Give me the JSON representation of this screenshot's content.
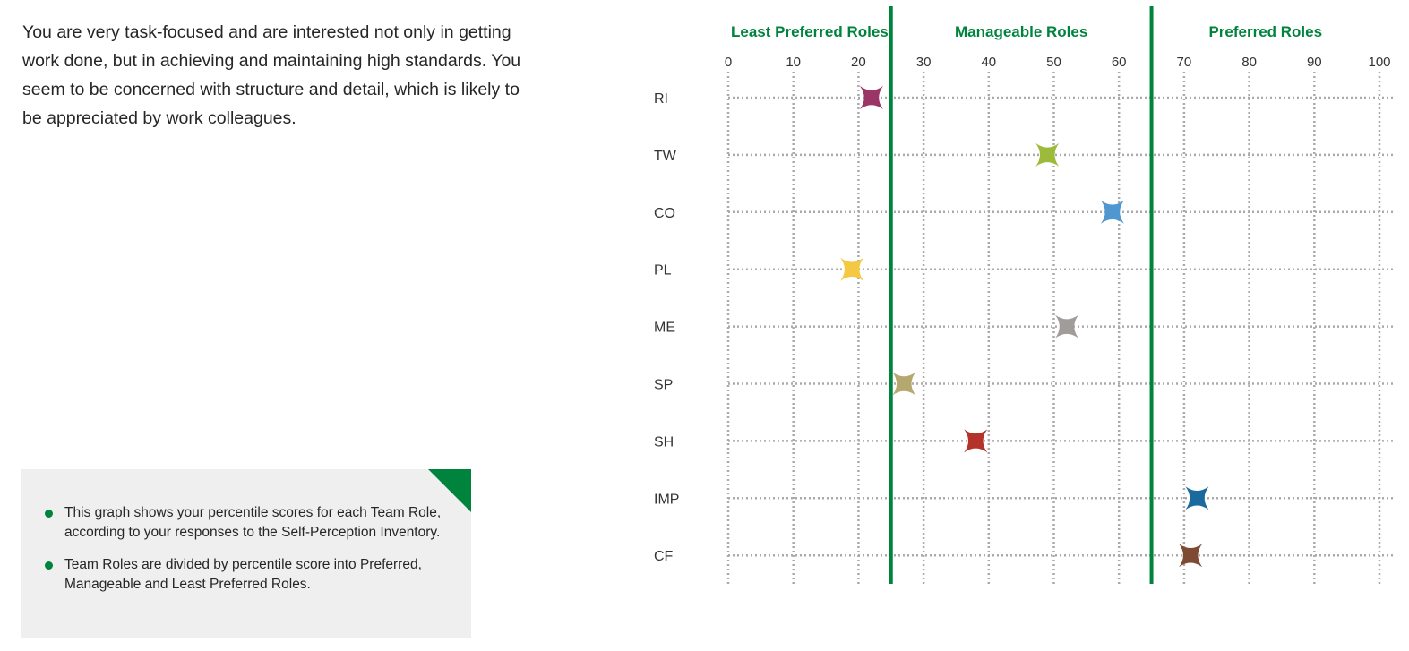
{
  "intro_text": "You are very task-focused and are interested not only in getting work done, but in achieving and maintaining high standards. You seem to be concerned with structure and detail, which is likely to be appreciated by work colleagues.",
  "notes": [
    "This graph shows your percentile scores for each Team Role, according to your responses to the Self-Perception Inventory.",
    "Team Roles are divided by percentile score into Preferred, Manageable and Least Preferred Roles."
  ],
  "colors": {
    "accent": "#00843d",
    "note_bg": "#efefef"
  },
  "chart_data": {
    "type": "scatter",
    "xlim": [
      0,
      100
    ],
    "xticks": [
      0,
      10,
      20,
      30,
      40,
      50,
      60,
      70,
      80,
      90,
      100
    ],
    "grid": true,
    "zones": [
      {
        "label": "Least Preferred Roles",
        "from": 0,
        "to": 25
      },
      {
        "label": "Manageable Roles",
        "from": 25,
        "to": 65
      },
      {
        "label": "Preferred Roles",
        "from": 65,
        "to": 100
      }
    ],
    "boundaries": [
      25,
      65
    ],
    "categories": [
      "RI",
      "TW",
      "CO",
      "PL",
      "ME",
      "SP",
      "SH",
      "IMP",
      "CF"
    ],
    "values": [
      22,
      49,
      59,
      19,
      52,
      27,
      38,
      72,
      71
    ],
    "marker_colors": [
      "#9b3467",
      "#9dbb3a",
      "#4f97d0",
      "#f5c842",
      "#a09c9a",
      "#b5a86f",
      "#b5322a",
      "#1a6aa0",
      "#7e4a33"
    ],
    "marker": "four-point-star"
  }
}
